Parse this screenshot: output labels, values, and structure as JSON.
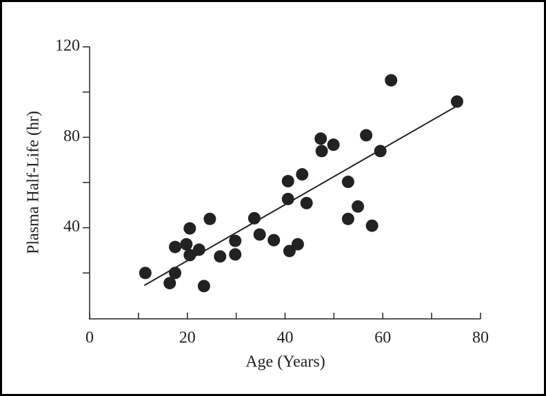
{
  "chart_data": {
    "type": "scatter",
    "x_label": "Age (Years)",
    "y_label": "Plasma Half-Life (hr)",
    "xlim": [
      0,
      80
    ],
    "ylim": [
      0,
      120
    ],
    "xticks": [
      0,
      20,
      40,
      60,
      80
    ],
    "xminor_ticks": [
      10,
      30,
      50,
      70
    ],
    "yticks": [
      40,
      80,
      120
    ],
    "yminor_ticks": [
      20,
      60,
      100
    ],
    "color": "#222222",
    "x": [
      11.4,
      16.4,
      17.5,
      17.5,
      19.8,
      20.5,
      20.5,
      22.4,
      23.4,
      24.6,
      26.7,
      29.8,
      29.8,
      33.7,
      34.8,
      37.7,
      40.6,
      40.6,
      40.9,
      42.6,
      43.5,
      44.4,
      47.3,
      47.5,
      49.9,
      52.9,
      52.9,
      54.9,
      56.6,
      57.8,
      59.5,
      61.7,
      75.2
    ],
    "values": [
      20,
      15.5,
      20,
      31.5,
      32.7,
      39.7,
      27.9,
      30.3,
      14.2,
      43.9,
      27.3,
      34.2,
      28.2,
      44.2,
      37,
      34.5,
      60.6,
      52.7,
      29.7,
      32.7,
      63.6,
      50.9,
      79.4,
      73.9,
      76.7,
      60.3,
      43.9,
      49.4,
      80.9,
      40.9,
      73.9,
      105.2,
      95.8
    ],
    "trendline": {
      "x": [
        11.2,
        75.3
      ],
      "y": [
        14.5,
        94
      ]
    }
  }
}
